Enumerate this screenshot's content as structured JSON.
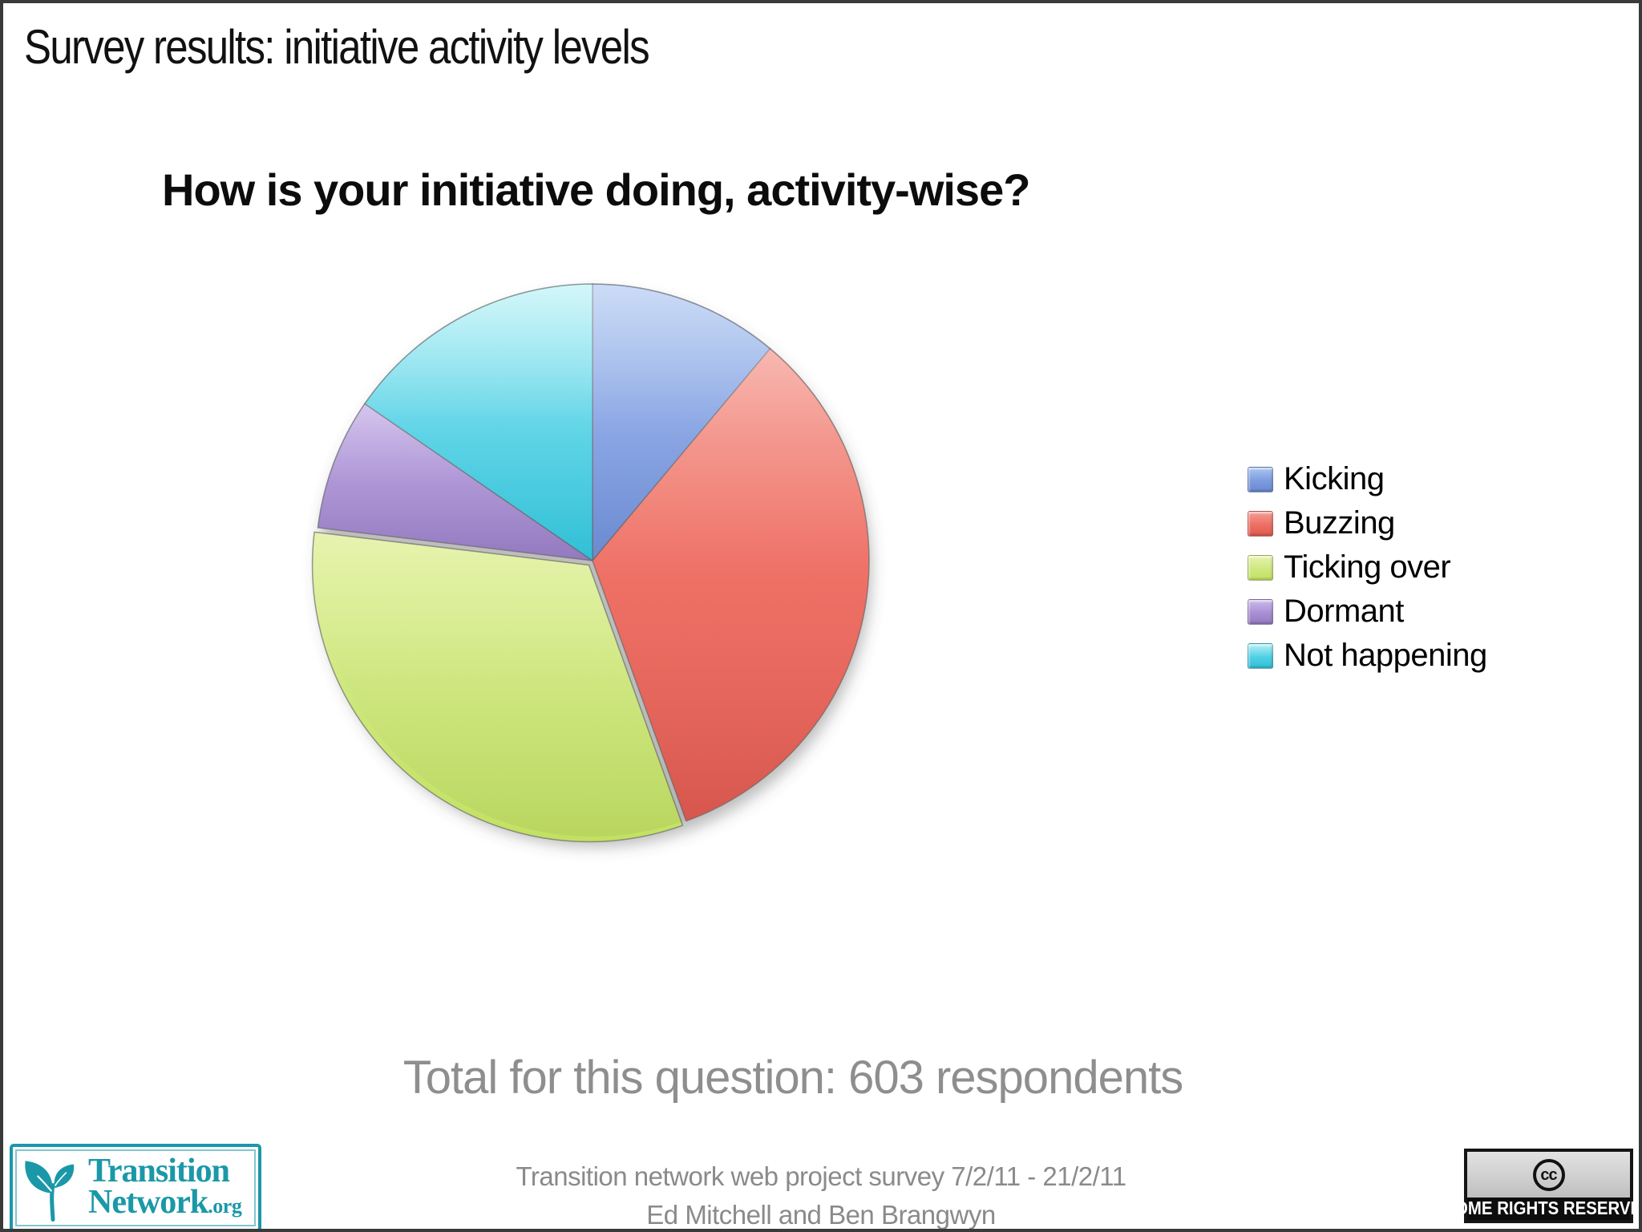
{
  "slide": {
    "title": "Survey results: initiative activity levels",
    "question": "How is your initiative doing, activity-wise?",
    "total_note": "Total for this question: 603 respondents",
    "footer_line1": "Transition network web project survey 7/2/11 - 21/2/11",
    "footer_line2": "Ed Mitchell and Ben Brangwyn"
  },
  "chart_data": {
    "type": "pie",
    "title": "How is your initiative doing, activity-wise?",
    "total_respondents": 603,
    "unit": "percent_of_respondents_estimated_from_slice_angles",
    "start_angle_deg": 0,
    "direction": "clockwise",
    "legend_position": "right",
    "slices": [
      {
        "label": "Kicking",
        "percent": 11.1,
        "color": "#7d9ce1",
        "color_light": "#a9c4f0",
        "color_dark": "#6a89d0",
        "exploded": false
      },
      {
        "label": "Buzzing",
        "percent": 33.4,
        "color": "#ee6f64",
        "color_light": "#f59d93",
        "color_dark": "#e05a50",
        "exploded": false
      },
      {
        "label": "Ticking over",
        "percent": 32.4,
        "color": "#cfe87e",
        "color_light": "#e7f3af",
        "color_dark": "#c2e163",
        "exploded": true
      },
      {
        "label": "Dormant",
        "percent": 7.7,
        "color": "#a98fd3",
        "color_light": "#cdbaeb",
        "color_dark": "#9379bf",
        "exploded": false
      },
      {
        "label": "Not happening",
        "percent": 15.4,
        "color": "#4ed0e4",
        "color_light": "#b6f1f6",
        "color_dark": "#30bfd6",
        "exploded": false
      }
    ]
  },
  "logo": {
    "word1": "Transition",
    "word2": "Network",
    "suffix": ".org",
    "color": "#1b98a8"
  },
  "cc_badge": {
    "cc": "cc",
    "label": "SOME RIGHTS RESERVED"
  }
}
